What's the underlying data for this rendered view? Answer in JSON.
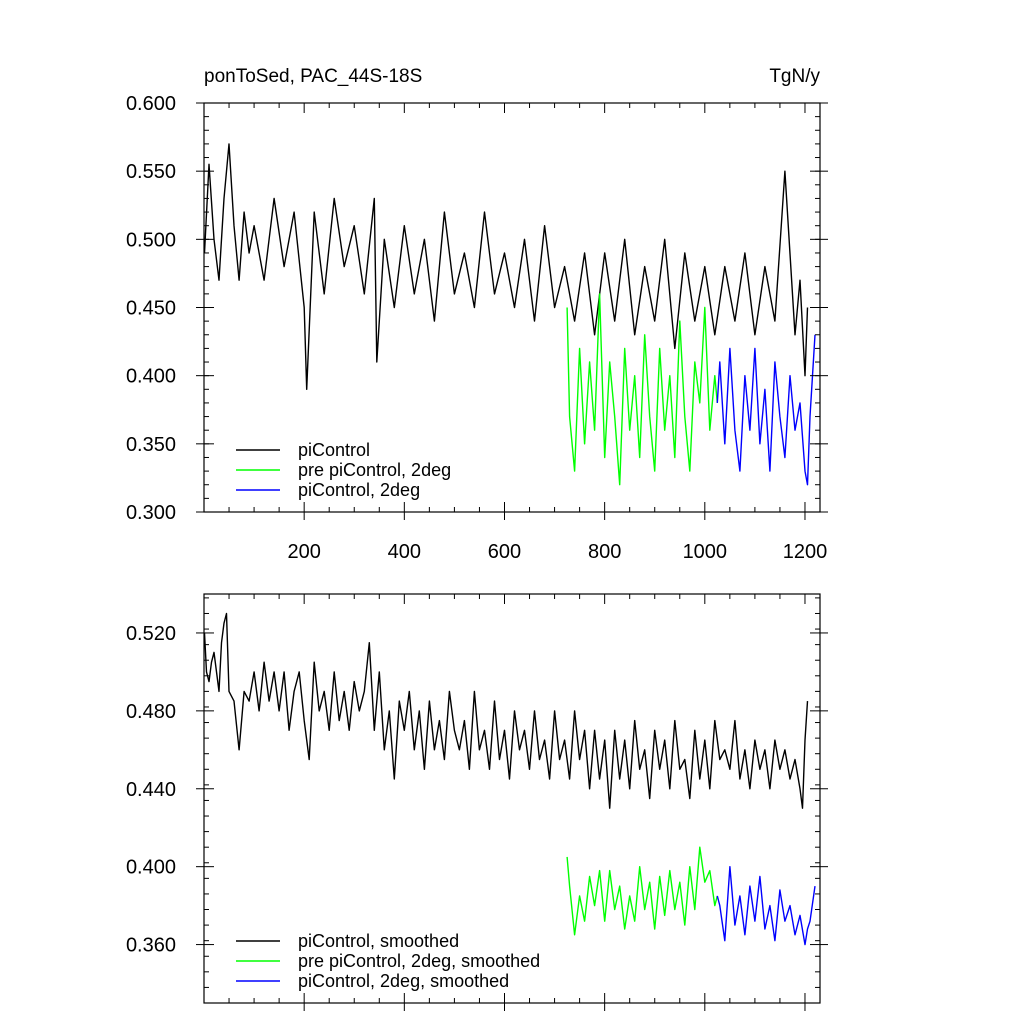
{
  "chart_data": [
    {
      "type": "line",
      "title": "ponToSed, PAC_44S-18S",
      "units": "TgN/y",
      "xlim": [
        0,
        1230
      ],
      "ylim": [
        0.3,
        0.6
      ],
      "xticks": [
        200,
        400,
        600,
        800,
        1000,
        1200
      ],
      "xtick_labels": [
        "200",
        "400",
        "600",
        "800",
        "1000",
        "1200"
      ],
      "yticks": [
        0.3,
        0.35,
        0.4,
        0.45,
        0.5,
        0.55,
        0.6
      ],
      "ytick_labels": [
        "0.300",
        "0.350",
        "0.400",
        "0.450",
        "0.500",
        "0.550",
        "0.600"
      ],
      "legend_position": "bottom-left",
      "series": [
        {
          "name": "piControl",
          "color": "#000000",
          "x": [
            1,
            10,
            20,
            30,
            40,
            50,
            60,
            70,
            80,
            90,
            100,
            120,
            140,
            160,
            180,
            200,
            205,
            220,
            240,
            260,
            280,
            300,
            320,
            340,
            345,
            360,
            380,
            400,
            420,
            440,
            460,
            480,
            500,
            520,
            540,
            560,
            580,
            600,
            620,
            640,
            660,
            680,
            700,
            720,
            740,
            760,
            780,
            800,
            820,
            840,
            860,
            880,
            900,
            920,
            940,
            960,
            980,
            1000,
            1020,
            1040,
            1060,
            1080,
            1100,
            1120,
            1140,
            1160,
            1180,
            1190,
            1200,
            1205
          ],
          "values": [
            0.49,
            0.555,
            0.5,
            0.47,
            0.53,
            0.57,
            0.51,
            0.47,
            0.52,
            0.49,
            0.51,
            0.47,
            0.53,
            0.48,
            0.52,
            0.45,
            0.39,
            0.52,
            0.46,
            0.53,
            0.48,
            0.51,
            0.46,
            0.53,
            0.41,
            0.5,
            0.45,
            0.51,
            0.46,
            0.5,
            0.44,
            0.52,
            0.46,
            0.49,
            0.45,
            0.52,
            0.46,
            0.49,
            0.45,
            0.5,
            0.44,
            0.51,
            0.45,
            0.48,
            0.44,
            0.49,
            0.43,
            0.49,
            0.44,
            0.5,
            0.43,
            0.48,
            0.44,
            0.5,
            0.42,
            0.49,
            0.44,
            0.48,
            0.43,
            0.48,
            0.44,
            0.49,
            0.43,
            0.48,
            0.44,
            0.55,
            0.43,
            0.47,
            0.4,
            0.45
          ]
        },
        {
          "name": "pre piControl, 2deg",
          "color": "#00ff00",
          "x": [
            725,
            730,
            740,
            750,
            760,
            770,
            780,
            790,
            800,
            810,
            820,
            830,
            840,
            850,
            860,
            870,
            880,
            890,
            900,
            910,
            920,
            930,
            940,
            950,
            960,
            970,
            980,
            990,
            1000,
            1010,
            1020,
            1025
          ],
          "values": [
            0.45,
            0.37,
            0.33,
            0.42,
            0.35,
            0.41,
            0.36,
            0.46,
            0.34,
            0.41,
            0.37,
            0.32,
            0.42,
            0.36,
            0.4,
            0.34,
            0.43,
            0.37,
            0.33,
            0.42,
            0.36,
            0.4,
            0.34,
            0.44,
            0.37,
            0.33,
            0.41,
            0.38,
            0.45,
            0.36,
            0.4,
            0.38
          ]
        },
        {
          "name": "piControl, 2deg",
          "color": "#0000ff",
          "x": [
            1025,
            1030,
            1040,
            1050,
            1060,
            1070,
            1080,
            1090,
            1100,
            1110,
            1120,
            1130,
            1140,
            1150,
            1160,
            1170,
            1180,
            1190,
            1200,
            1205,
            1210,
            1220
          ],
          "values": [
            0.38,
            0.41,
            0.35,
            0.42,
            0.36,
            0.33,
            0.4,
            0.36,
            0.42,
            0.35,
            0.39,
            0.33,
            0.41,
            0.37,
            0.34,
            0.4,
            0.36,
            0.38,
            0.33,
            0.32,
            0.37,
            0.43
          ]
        }
      ]
    },
    {
      "type": "line",
      "xlim": [
        0,
        1230
      ],
      "ylim": [
        0.33,
        0.54
      ],
      "yticks": [
        0.36,
        0.4,
        0.44,
        0.48,
        0.52
      ],
      "ytick_labels": [
        "0.360",
        "0.400",
        "0.440",
        "0.480",
        "0.520"
      ],
      "xticks": [
        200,
        400,
        600,
        800,
        1000,
        1200
      ],
      "legend_position": "bottom-left",
      "series": [
        {
          "name": "piControl, smoothed",
          "color": "#000000",
          "x": [
            1,
            5,
            10,
            15,
            20,
            25,
            30,
            35,
            40,
            45,
            50,
            60,
            70,
            80,
            90,
            100,
            110,
            120,
            130,
            140,
            150,
            160,
            170,
            180,
            190,
            200,
            210,
            220,
            230,
            240,
            250,
            260,
            270,
            280,
            290,
            300,
            310,
            320,
            330,
            340,
            350,
            360,
            370,
            380,
            390,
            400,
            410,
            420,
            430,
            440,
            450,
            460,
            470,
            480,
            490,
            500,
            510,
            520,
            530,
            540,
            550,
            560,
            570,
            580,
            590,
            600,
            610,
            620,
            630,
            640,
            650,
            660,
            670,
            680,
            690,
            700,
            710,
            720,
            730,
            740,
            750,
            760,
            770,
            780,
            790,
            800,
            810,
            820,
            830,
            840,
            850,
            860,
            870,
            880,
            890,
            900,
            910,
            920,
            930,
            940,
            950,
            960,
            970,
            980,
            990,
            1000,
            1010,
            1020,
            1030,
            1040,
            1050,
            1060,
            1070,
            1080,
            1090,
            1100,
            1110,
            1120,
            1130,
            1140,
            1150,
            1160,
            1170,
            1180,
            1190,
            1195,
            1200,
            1205
          ],
          "values": [
            0.52,
            0.5,
            0.495,
            0.505,
            0.51,
            0.5,
            0.49,
            0.515,
            0.525,
            0.53,
            0.49,
            0.485,
            0.46,
            0.49,
            0.485,
            0.5,
            0.48,
            0.505,
            0.485,
            0.5,
            0.48,
            0.5,
            0.47,
            0.49,
            0.5,
            0.475,
            0.455,
            0.505,
            0.48,
            0.49,
            0.47,
            0.5,
            0.475,
            0.49,
            0.47,
            0.495,
            0.48,
            0.49,
            0.515,
            0.47,
            0.5,
            0.46,
            0.48,
            0.445,
            0.485,
            0.47,
            0.49,
            0.46,
            0.48,
            0.45,
            0.485,
            0.46,
            0.475,
            0.455,
            0.49,
            0.47,
            0.46,
            0.475,
            0.45,
            0.49,
            0.46,
            0.47,
            0.45,
            0.485,
            0.455,
            0.47,
            0.445,
            0.48,
            0.46,
            0.47,
            0.45,
            0.48,
            0.455,
            0.465,
            0.445,
            0.48,
            0.455,
            0.465,
            0.445,
            0.48,
            0.455,
            0.47,
            0.44,
            0.47,
            0.445,
            0.465,
            0.43,
            0.47,
            0.445,
            0.465,
            0.44,
            0.475,
            0.45,
            0.46,
            0.435,
            0.47,
            0.45,
            0.465,
            0.44,
            0.475,
            0.45,
            0.455,
            0.435,
            0.47,
            0.445,
            0.465,
            0.44,
            0.475,
            0.455,
            0.46,
            0.45,
            0.475,
            0.445,
            0.46,
            0.44,
            0.465,
            0.45,
            0.46,
            0.44,
            0.465,
            0.45,
            0.46,
            0.445,
            0.455,
            0.44,
            0.43,
            0.465,
            0.485
          ]
        },
        {
          "name": "pre piControl, 2deg, smoothed",
          "color": "#00ff00",
          "x": [
            725,
            730,
            740,
            750,
            760,
            770,
            780,
            790,
            800,
            810,
            820,
            830,
            840,
            850,
            860,
            870,
            880,
            890,
            900,
            910,
            920,
            930,
            940,
            950,
            960,
            970,
            980,
            990,
            1000,
            1010,
            1020,
            1025
          ],
          "values": [
            0.405,
            0.39,
            0.365,
            0.385,
            0.372,
            0.395,
            0.38,
            0.398,
            0.372,
            0.398,
            0.378,
            0.39,
            0.368,
            0.385,
            0.372,
            0.4,
            0.378,
            0.392,
            0.368,
            0.395,
            0.375,
            0.398,
            0.378,
            0.392,
            0.37,
            0.4,
            0.378,
            0.41,
            0.392,
            0.398,
            0.38,
            0.385
          ]
        },
        {
          "name": "piControl, 2deg, smoothed",
          "color": "#0000ff",
          "x": [
            1025,
            1030,
            1040,
            1050,
            1060,
            1070,
            1080,
            1090,
            1100,
            1110,
            1120,
            1130,
            1140,
            1150,
            1160,
            1170,
            1180,
            1190,
            1200,
            1205,
            1210,
            1220
          ],
          "values": [
            0.385,
            0.38,
            0.362,
            0.4,
            0.37,
            0.385,
            0.365,
            0.39,
            0.372,
            0.395,
            0.368,
            0.38,
            0.362,
            0.388,
            0.372,
            0.38,
            0.365,
            0.375,
            0.36,
            0.368,
            0.372,
            0.39
          ]
        }
      ]
    }
  ]
}
